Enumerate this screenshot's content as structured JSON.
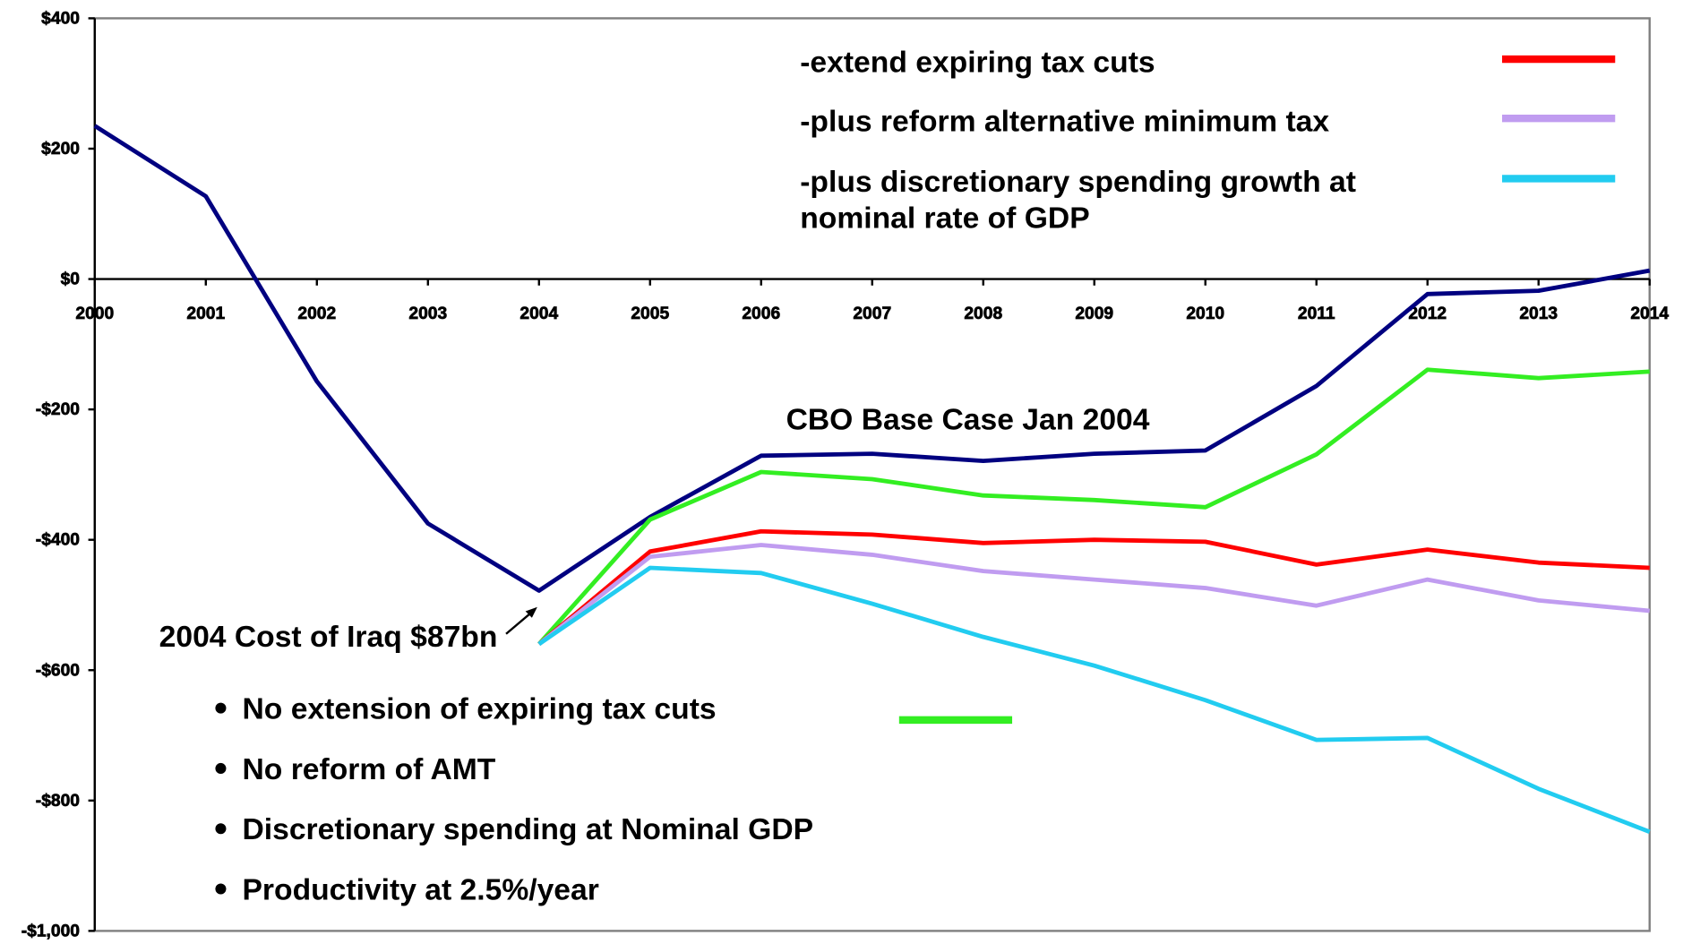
{
  "chart_data": {
    "type": "line",
    "x": [
      2000,
      2001,
      2002,
      2003,
      2004,
      2005,
      2006,
      2007,
      2008,
      2009,
      2010,
      2011,
      2012,
      2013,
      2014
    ],
    "xlim": [
      2000,
      2014
    ],
    "xticks": [
      2000,
      2001,
      2002,
      2003,
      2004,
      2005,
      2006,
      2007,
      2008,
      2009,
      2010,
      2011,
      2012,
      2013,
      2014
    ],
    "ylim": [
      -1000,
      400
    ],
    "yticks": [
      {
        "value": 400,
        "label": "$400"
      },
      {
        "value": 200,
        "label": "$200"
      },
      {
        "value": 0,
        "label": "$0"
      },
      {
        "value": -200,
        "label": "-$200"
      },
      {
        "value": -400,
        "label": "-$400"
      },
      {
        "value": -600,
        "label": "-$600"
      },
      {
        "value": -800,
        "label": "-$800"
      },
      {
        "value": -1000,
        "label": "-$1,000"
      }
    ],
    "legend": "top-right",
    "series": [
      {
        "name": "CBO Base Case Jan 2004",
        "color": "#000080",
        "values": [
          235,
          127,
          -157,
          -375,
          -478,
          -365,
          -271,
          -268,
          -279,
          -268,
          -263,
          -164,
          -23,
          -18,
          13
        ]
      },
      {
        "color": "#33ee22",
        "values": [
          null,
          null,
          null,
          null,
          -560,
          -369,
          -296,
          -307,
          -332,
          -339,
          -350,
          -269,
          -139,
          -152,
          -142
        ]
      },
      {
        "name": "-extend expiring tax cuts",
        "color": "#ff0000",
        "values": [
          null,
          null,
          null,
          null,
          -560,
          -418,
          -387,
          -392,
          -405,
          -400,
          -403,
          -438,
          -415,
          -435,
          -443
        ]
      },
      {
        "name": "-plus reform alternative minimum tax",
        "color": "#c09cf0",
        "values": [
          null,
          null,
          null,
          null,
          -560,
          -426,
          -408,
          -423,
          -448,
          -461,
          -474,
          -501,
          -461,
          -493,
          -509
        ]
      },
      {
        "name": "-plus discretionary spending growth at nominal rate of GDP",
        "color": "#22ccf0",
        "values": [
          null,
          null,
          null,
          null,
          -560,
          -443,
          -451,
          -498,
          -549,
          -593,
          -646,
          -707,
          -704,
          -782,
          -848
        ]
      }
    ],
    "annotations": [
      "2004 Cost of Iraq $87bn"
    ],
    "notes": [
      "No extension of expiring tax cuts",
      "No reform of AMT",
      "Discretionary spending at Nominal GDP",
      "Productivity at 2.5%/year"
    ]
  }
}
